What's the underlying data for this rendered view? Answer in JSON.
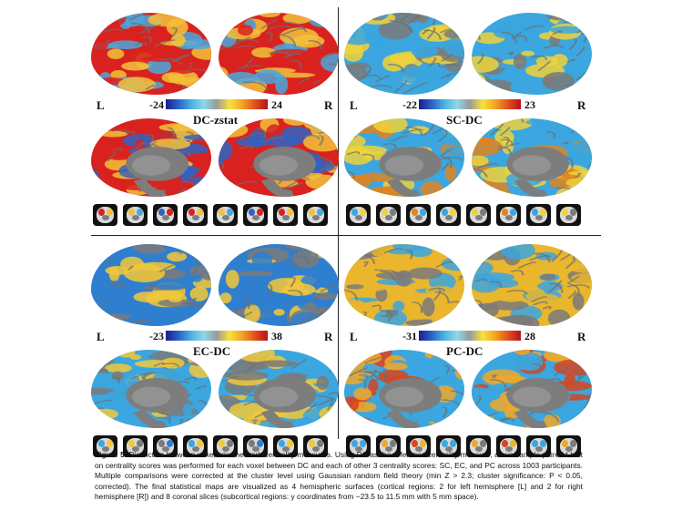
{
  "panels": [
    {
      "title": "DC-zstat",
      "min": "-24",
      "max": "24",
      "left": "L",
      "right": "R",
      "gradient": [
        "#1c1f8f",
        "#2a60c8",
        "#4ab3e0",
        "#8ed8e6",
        "#9a9a9a",
        "#f7e23c",
        "#f4a323",
        "#e2501c",
        "#b5121b"
      ],
      "lateral": [
        "#d9221f",
        "#f2c13a",
        "#4aa7dd"
      ],
      "medial": [
        "#d9221f",
        "#f2c13a",
        "#2f63c4"
      ]
    },
    {
      "title": "SC-DC",
      "min": "-22",
      "max": "23",
      "left": "L",
      "right": "R",
      "gradient": [
        "#1c1f8f",
        "#2a60c8",
        "#4ab3e0",
        "#8ed8e6",
        "#9a9a9a",
        "#f7e23c",
        "#f4a323",
        "#e2501c",
        "#b5121b"
      ],
      "lateral": [
        "#3ba6df",
        "#f0d23a",
        "#7a7a7a"
      ],
      "medial": [
        "#3ba6df",
        "#f0d23a",
        "#e0841f"
      ]
    },
    {
      "title": "EC-DC",
      "min": "-23",
      "max": "38",
      "left": "L",
      "right": "R",
      "gradient": [
        "#1c1f8f",
        "#2a60c8",
        "#4ab3e0",
        "#8ed8e6",
        "#9a9a9a",
        "#f7e23c",
        "#f4a323",
        "#e2501c",
        "#b5121b"
      ],
      "lateral": [
        "#2f7fd0",
        "#f2c83a",
        "#7a7a7a"
      ],
      "medial": [
        "#3ba6df",
        "#f2c83a",
        "#7a7a7a"
      ]
    },
    {
      "title": "PC-DC",
      "min": "-31",
      "max": "28",
      "left": "L",
      "right": "R",
      "gradient": [
        "#1c1f8f",
        "#2a60c8",
        "#4ab3e0",
        "#8ed8e6",
        "#9a9a9a",
        "#f7e23c",
        "#f4a323",
        "#e2501c",
        "#b5121b"
      ],
      "lateral": [
        "#e9b62e",
        "#3ba6df",
        "#7a7a7a"
      ],
      "medial": [
        "#3ba6df",
        "#f0a82a",
        "#d9441d"
      ]
    }
  ],
  "caption": {
    "label": "Figure 5.",
    "text": " Distinction between voxel-wise network centrality measures. Using DC as the reference centrality measure, a two-sample paired t-test on centrality scores was performed for each voxel between DC and each of other 3 centrality scores: SC, EC, and PC across 1003 participants. Multiple comparisons were corrected at the cluster level using Gaussian random field theory (min Z > 2.3; cluster significance: P < 0.05, corrected). The final statistical maps are visualized as 4 hemispheric surfaces (cortical regions: 2 for left hemisphere [L] and 2 for right hemisphere [R]) and 8 coronal slices (subcortical regions: y coordinates from −23.5 to 11.5 mm with 5 mm space)."
  }
}
